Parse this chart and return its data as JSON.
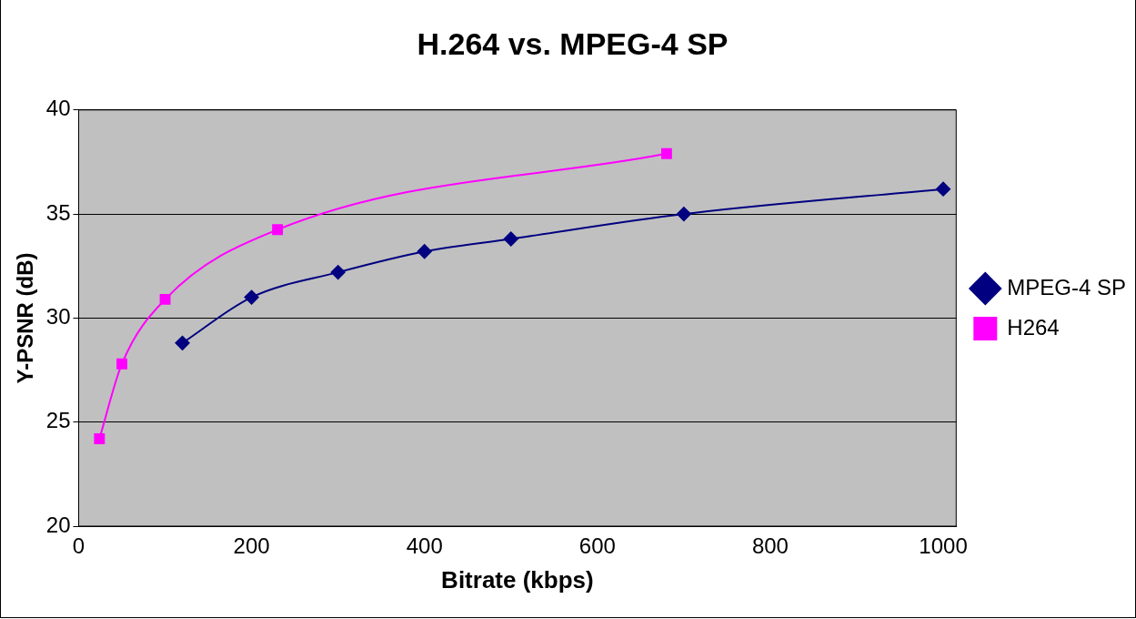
{
  "chart_data": {
    "type": "line",
    "title": "H.264 vs. MPEG-4 SP",
    "xlabel": "Bitrate (kbps)",
    "ylabel": "Y-PSNR (dB)",
    "xlim": [
      0,
      1015
    ],
    "xticks": [
      0,
      200,
      400,
      600,
      800,
      1000
    ],
    "ylim": [
      20,
      40
    ],
    "yticks": [
      20,
      25,
      30,
      35,
      40
    ],
    "grid": "y",
    "legend": "right",
    "series": [
      {
        "name": "MPEG-4 SP",
        "color": "#000080",
        "marker": "diamond",
        "x": [
          120,
          200,
          300,
          400,
          500,
          700,
          1000
        ],
        "values": [
          28.8,
          31.0,
          32.2,
          33.2,
          33.8,
          35.0,
          36.2
        ]
      },
      {
        "name": "H264",
        "color": "#ff00ff",
        "marker": "square",
        "x": [
          24,
          50,
          100,
          230,
          680
        ],
        "values": [
          24.2,
          27.8,
          30.9,
          34.25,
          37.9
        ]
      }
    ]
  }
}
